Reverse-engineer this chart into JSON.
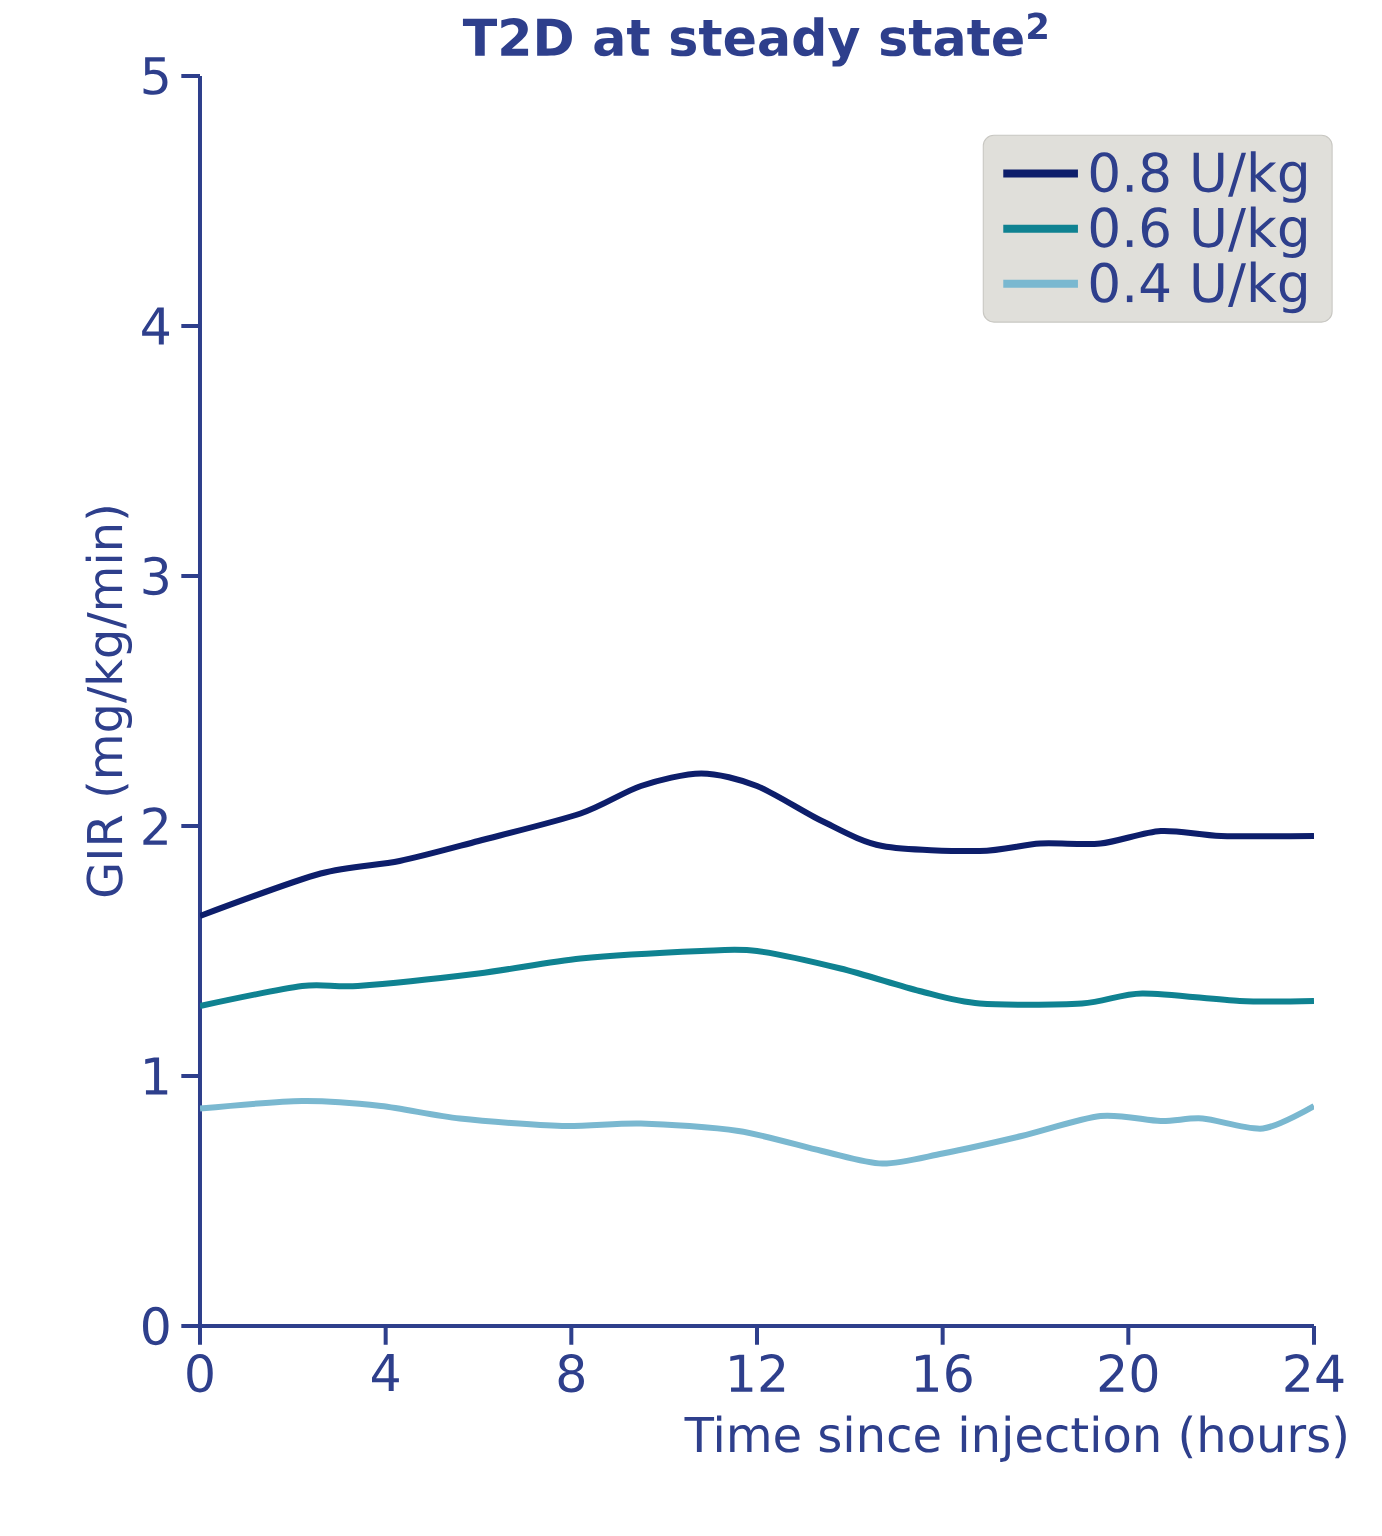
{
  "chart_data": {
    "type": "line",
    "title": "T2D at steady state$^{2}$",
    "xlabel": "Time since injection (hours)",
    "ylabel": "GIR (mg/kg/min)",
    "xlim": [
      0,
      24
    ],
    "ylim": [
      0,
      5
    ],
    "xticks": [
      0,
      4,
      8,
      12,
      16,
      20,
      24
    ],
    "yticks": [
      0,
      1,
      2,
      3,
      4,
      5
    ],
    "grid": false,
    "legend": "top right",
    "marker": "none",
    "line_style": "solid",
    "series": [
      {
        "name": "0.8 U/kg",
        "color": "#0d1e6b",
        "x": [
          0,
          2.6,
          4.3,
          6,
          8.2,
          9.5,
          10.8,
          12,
          13.4,
          14.7,
          16.8,
          18.1,
          19.4,
          20.7,
          22,
          24
        ],
        "values": [
          1.64,
          1.81,
          1.86,
          1.94,
          2.05,
          2.16,
          2.21,
          2.16,
          2.02,
          1.92,
          1.9,
          1.93,
          1.93,
          1.98,
          1.96,
          1.96
        ]
      },
      {
        "name": "0.6 U/kg",
        "color": "#0f8291",
        "x": [
          0,
          2.2,
          3.4,
          6,
          8.2,
          10.8,
          12,
          13.8,
          15.5,
          16.8,
          19,
          20.3,
          22.4,
          24
        ],
        "values": [
          1.28,
          1.36,
          1.36,
          1.41,
          1.47,
          1.5,
          1.5,
          1.43,
          1.34,
          1.29,
          1.29,
          1.33,
          1.3,
          1.3
        ]
      },
      {
        "name": "0.4 U/kg",
        "color": "#7ab8d0",
        "x": [
          0,
          2.2,
          3.9,
          5.6,
          7.8,
          9.5,
          11.6,
          13.4,
          14.7,
          16,
          17.7,
          19.4,
          20.7,
          21.6,
          22.9,
          24
        ],
        "values": [
          0.87,
          0.9,
          0.88,
          0.83,
          0.8,
          0.81,
          0.78,
          0.7,
          0.65,
          0.69,
          0.76,
          0.84,
          0.82,
          0.83,
          0.79,
          0.88
        ]
      }
    ]
  }
}
